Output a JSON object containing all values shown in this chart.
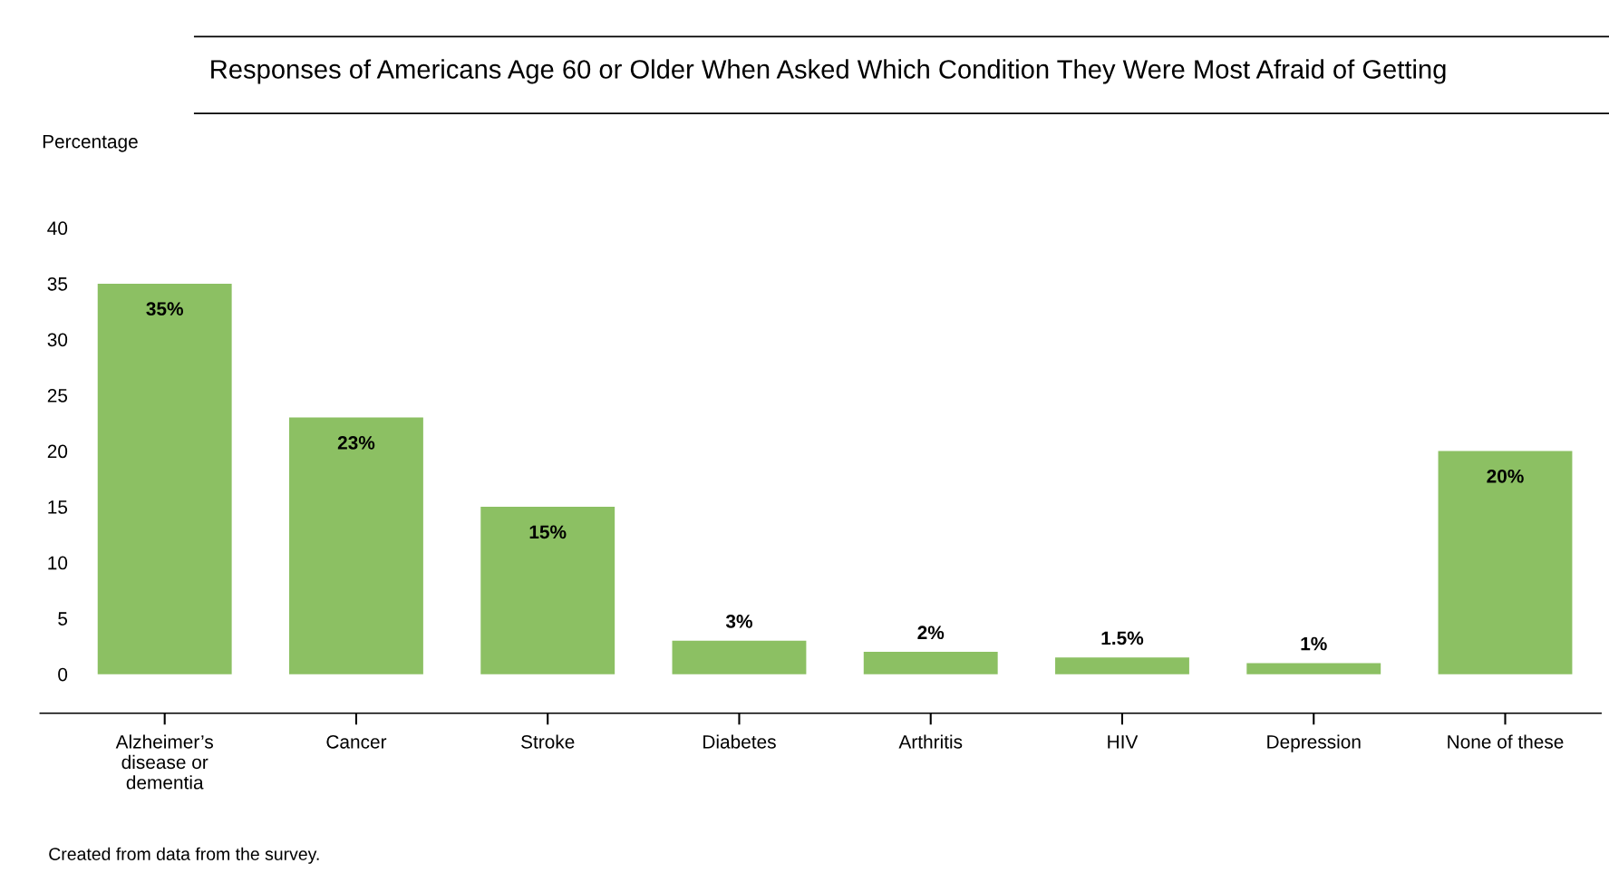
{
  "chart_data": {
    "type": "bar",
    "title": "Responses of Americans Age 60 or Older When Asked Which Condition They Were Most Afraid of Getting",
    "ylabel": "Percentage",
    "categories": [
      "Alzheimer’s\ndisease or\ndementia",
      "Cancer",
      "Stroke",
      "Diabetes",
      "Arthritis",
      "HIV",
      "Depression",
      "None of these"
    ],
    "values": [
      35,
      23,
      15,
      3,
      2,
      1.5,
      1,
      20
    ],
    "value_labels": [
      "35%",
      "23%",
      "15%",
      "3%",
      "2%",
      "1.5%",
      "1%",
      "20%"
    ],
    "color": "#8cc063",
    "ylim": [
      -3.5,
      40
    ],
    "yticks": [
      0,
      5,
      10,
      15,
      20,
      25,
      30,
      35,
      40
    ],
    "grid": false,
    "legend": false,
    "annotations": [
      "Created from data from the survey."
    ]
  }
}
